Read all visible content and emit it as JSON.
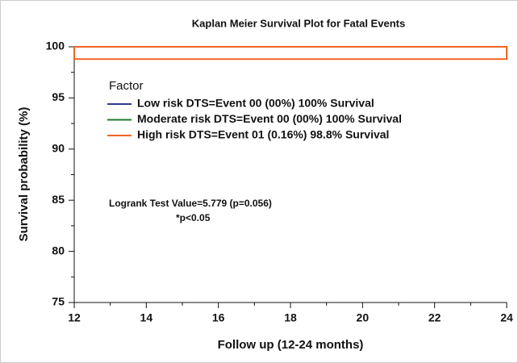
{
  "chart_data": {
    "type": "line",
    "title": "Kaplan Meier Survival Plot for Fatal Events",
    "x_label": "Follow up (12-24 months)",
    "y_label": "Survival probability (%)",
    "legend_title": "Factor",
    "annotations": [
      "Logrank Test Value=5.779 (p=0.056)",
      "*p<0.05"
    ],
    "xlim": [
      12,
      24
    ],
    "xticks": [
      12,
      14,
      16,
      18,
      20,
      22,
      24
    ],
    "xminorticks": [
      13,
      15,
      17,
      19,
      21,
      23
    ],
    "ylim": [
      75,
      100
    ],
    "yticks": [
      75,
      80,
      85,
      90,
      95,
      100
    ],
    "yminorticks": [
      77.5,
      82.5,
      87.5,
      92.5,
      97.5
    ],
    "series": [
      {
        "name": "Low risk DTS=Event 00 (00%) 100% Survival",
        "color": "#2e3a8c",
        "x": [
          12,
          24
        ],
        "values": [
          100,
          100
        ]
      },
      {
        "name": "Moderate risk DTS=Event 00 (00%) 100% Survival",
        "color": "#1f7a2e",
        "x": [
          12,
          24
        ],
        "values": [
          100,
          100
        ]
      },
      {
        "name": "High risk DTS=Event 01 (0.16%) 98.8% Survival",
        "color": "#f26522",
        "x": [
          12,
          12,
          24,
          24,
          12
        ],
        "values": [
          100,
          98.8,
          98.8,
          100,
          100
        ]
      }
    ]
  }
}
